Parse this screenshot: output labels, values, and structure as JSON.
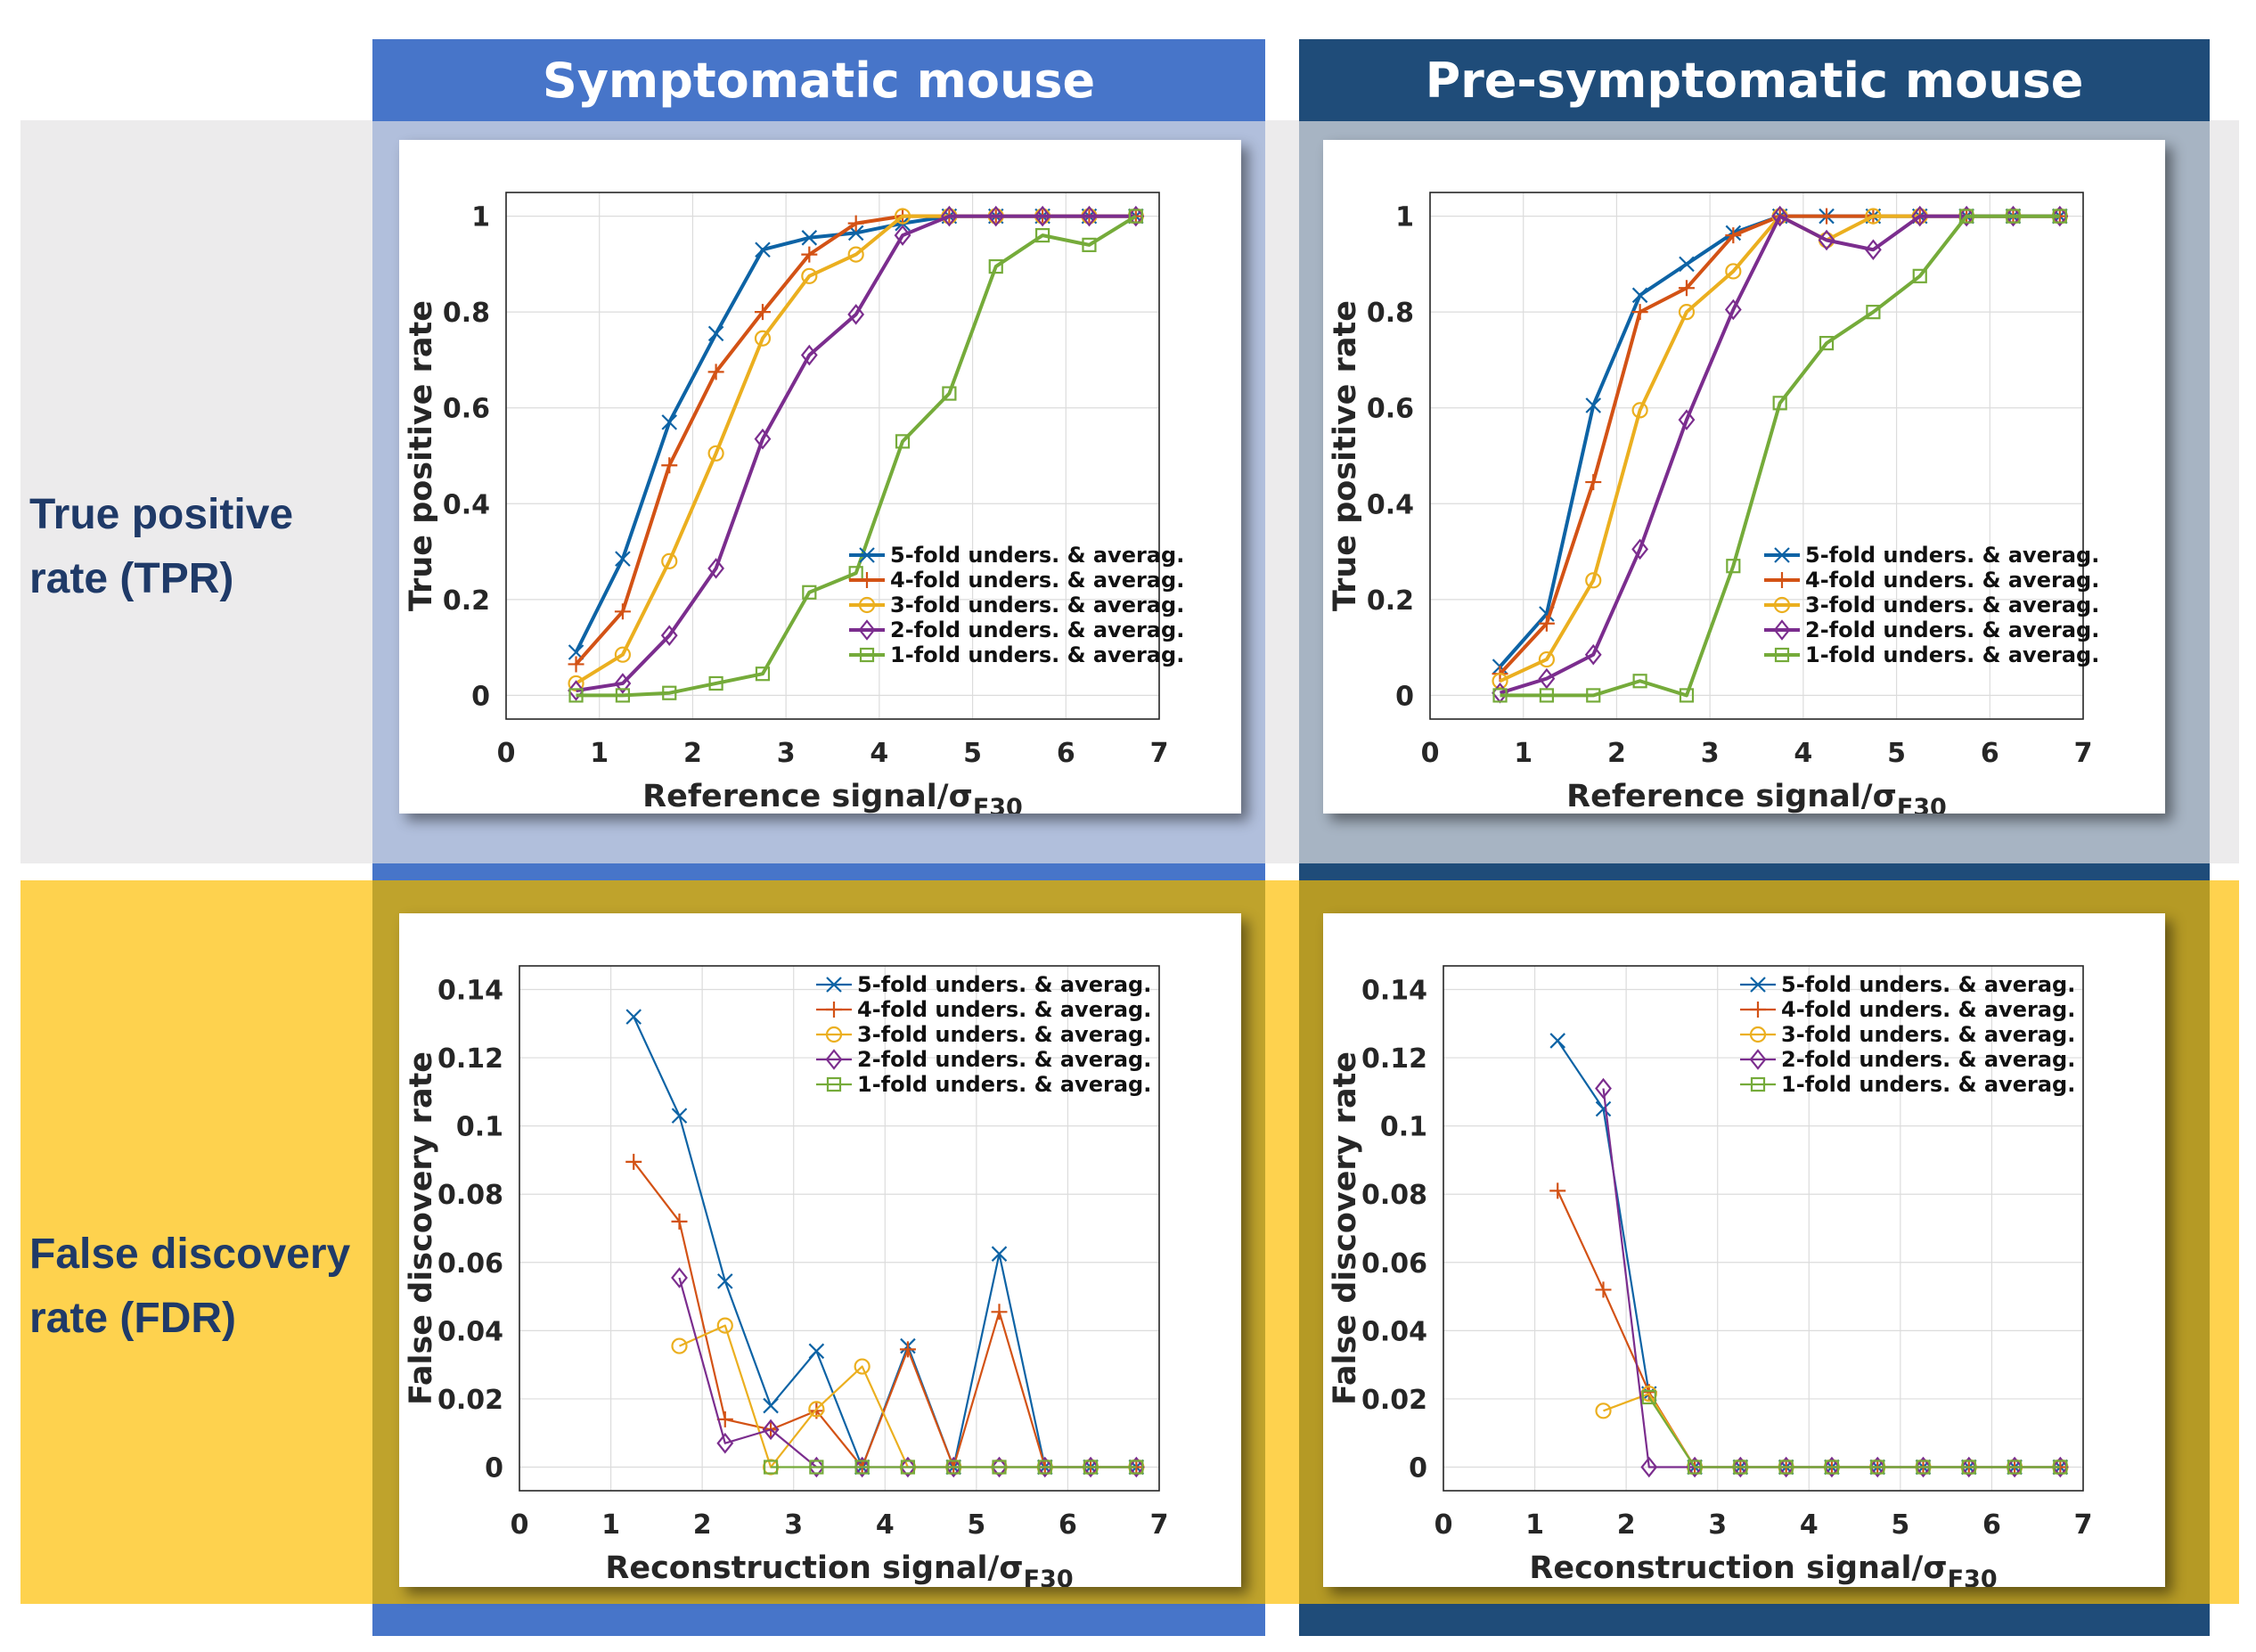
{
  "columns": [
    {
      "title": "Symptomatic mouse",
      "color": "#4775c9"
    },
    {
      "title": "Pre-symptomatic mouse",
      "color": "#1f4c79"
    }
  ],
  "rows": [
    {
      "line1": "True positive",
      "line2": "rate (TPR)"
    },
    {
      "line1": "False discovery",
      "line2": "rate (FDR)"
    }
  ],
  "series_names": [
    "5-fold unders. & averag.",
    "4-fold unders. & averag.",
    "3-fold unders. & averag.",
    "2-fold unders. & averag.",
    "1-fold unders. & averag."
  ],
  "series_colors": [
    "#0d63a5",
    "#d35215",
    "#ebaf1f",
    "#7b2d8e",
    "#75ab3a"
  ],
  "series_markers": [
    "x",
    "+",
    "o",
    "diamond",
    "square"
  ],
  "chart_data": [
    {
      "id": "tpr-symptomatic",
      "type": "line",
      "xlabel": "Reference signal/σ",
      "xlabel_sub": "F30",
      "ylabel": "True positive rate",
      "xlim": [
        0,
        7
      ],
      "ylim": [
        0,
        1
      ],
      "xticks": [
        "0",
        "1",
        "2",
        "3",
        "4",
        "5",
        "6",
        "7"
      ],
      "yticks": [
        "0",
        "0.2",
        "0.4",
        "0.6",
        "0.8",
        "1"
      ],
      "legend_position": "bottom-right",
      "series": [
        {
          "name": "5-fold unders. & averag.",
          "x": [
            0.75,
            1.25,
            1.75,
            2.25,
            2.75,
            3.25,
            3.75,
            4.25,
            4.75,
            5.25,
            5.75,
            6.25,
            6.75
          ],
          "y": [
            0.09,
            0.285,
            0.57,
            0.755,
            0.93,
            0.955,
            0.965,
            0.985,
            1,
            1,
            1,
            1,
            1
          ]
        },
        {
          "name": "4-fold unders. & averag.",
          "x": [
            0.75,
            1.25,
            1.75,
            2.25,
            2.75,
            3.25,
            3.75,
            4.25,
            4.75,
            5.25,
            5.75,
            6.25,
            6.75
          ],
          "y": [
            0.065,
            0.175,
            0.48,
            0.675,
            0.8,
            0.92,
            0.985,
            1,
            1,
            1,
            1,
            1,
            1
          ]
        },
        {
          "name": "3-fold unders. & averag.",
          "x": [
            0.75,
            1.25,
            1.75,
            2.25,
            2.75,
            3.25,
            3.75,
            4.25,
            4.75,
            5.25,
            5.75,
            6.25,
            6.75
          ],
          "y": [
            0.025,
            0.085,
            0.28,
            0.505,
            0.745,
            0.875,
            0.92,
            1,
            1,
            1,
            1,
            1,
            1
          ]
        },
        {
          "name": "2-fold unders. & averag.",
          "x": [
            0.75,
            1.25,
            1.75,
            2.25,
            2.75,
            3.25,
            3.75,
            4.25,
            4.75,
            5.25,
            5.75,
            6.25,
            6.75
          ],
          "y": [
            0.01,
            0.025,
            0.125,
            0.265,
            0.535,
            0.71,
            0.795,
            0.96,
            1,
            1,
            1,
            1,
            1
          ]
        },
        {
          "name": "1-fold unders. & averag.",
          "x": [
            0.75,
            1.25,
            1.75,
            2.25,
            2.75,
            3.25,
            3.75,
            4.25,
            4.75,
            5.25,
            5.75,
            6.25,
            6.75
          ],
          "y": [
            0,
            0,
            0.005,
            0.025,
            0.045,
            0.215,
            0.255,
            0.53,
            0.63,
            0.895,
            0.96,
            0.94,
            1
          ]
        }
      ]
    },
    {
      "id": "tpr-presymptomatic",
      "type": "line",
      "xlabel": "Reference signal/σ",
      "xlabel_sub": "F30",
      "ylabel": "True positive rate",
      "xlim": [
        0,
        7
      ],
      "ylim": [
        0,
        1
      ],
      "xticks": [
        "0",
        "1",
        "2",
        "3",
        "4",
        "5",
        "6",
        "7"
      ],
      "yticks": [
        "0",
        "0.2",
        "0.4",
        "0.6",
        "0.8",
        "1"
      ],
      "legend_position": "bottom-right",
      "series": [
        {
          "name": "5-fold unders. & averag.",
          "x": [
            0.75,
            1.25,
            1.75,
            2.25,
            2.75,
            3.25,
            3.75,
            4.25,
            4.75,
            5.25,
            5.75,
            6.25,
            6.75
          ],
          "y": [
            0.06,
            0.17,
            0.605,
            0.835,
            0.9,
            0.965,
            1,
            1,
            1,
            1,
            1,
            1,
            1
          ]
        },
        {
          "name": "4-fold unders. & averag.",
          "x": [
            0.75,
            1.25,
            1.75,
            2.25,
            2.75,
            3.25,
            3.75,
            4.25,
            4.75,
            5.25,
            5.75,
            6.25,
            6.75
          ],
          "y": [
            0.045,
            0.15,
            0.445,
            0.8,
            0.85,
            0.96,
            1,
            1,
            1,
            1,
            1,
            1,
            1
          ]
        },
        {
          "name": "3-fold unders. & averag.",
          "x": [
            0.75,
            1.25,
            1.75,
            2.25,
            2.75,
            3.25,
            3.75,
            4.25,
            4.75,
            5.25,
            5.75,
            6.25,
            6.75
          ],
          "y": [
            0.03,
            0.075,
            0.24,
            0.595,
            0.8,
            0.885,
            1,
            0.95,
            1,
            1,
            1,
            1,
            1
          ]
        },
        {
          "name": "2-fold unders. & averag.",
          "x": [
            0.75,
            1.25,
            1.75,
            2.25,
            2.75,
            3.25,
            3.75,
            4.25,
            4.75,
            5.25,
            5.75,
            6.25,
            6.75
          ],
          "y": [
            0.005,
            0.035,
            0.085,
            0.305,
            0.575,
            0.805,
            1,
            0.95,
            0.93,
            1,
            1,
            1,
            1
          ]
        },
        {
          "name": "1-fold unders. & averag.",
          "x": [
            0.75,
            1.25,
            1.75,
            2.25,
            2.75,
            3.25,
            3.75,
            4.25,
            4.75,
            5.25,
            5.75,
            6.25,
            6.75
          ],
          "y": [
            0,
            0,
            0,
            0.03,
            0,
            0.27,
            0.61,
            0.735,
            0.8,
            0.875,
            1,
            1,
            1
          ]
        }
      ]
    },
    {
      "id": "fdr-symptomatic",
      "type": "line",
      "xlabel": "Reconstruction signal/σ",
      "xlabel_sub": "F30",
      "ylabel": "False discovery rate",
      "xlim": [
        0,
        7
      ],
      "ylim": [
        0,
        0.14
      ],
      "xticks": [
        "0",
        "1",
        "2",
        "3",
        "4",
        "5",
        "6",
        "7"
      ],
      "yticks": [
        "0",
        "0.02",
        "0.04",
        "0.06",
        "0.08",
        "0.1",
        "0.12",
        "0.14"
      ],
      "legend_position": "top-right",
      "series": [
        {
          "name": "5-fold unders. & averag.",
          "x": [
            1.25,
            1.75,
            2.25,
            2.75,
            3.25,
            3.75,
            4.25,
            4.75,
            5.25,
            5.75,
            6.25,
            6.75
          ],
          "y": [
            0.132,
            0.103,
            0.0545,
            0.018,
            0.034,
            0,
            0.0355,
            0,
            0.0625,
            0,
            0,
            0
          ]
        },
        {
          "name": "4-fold unders. & averag.",
          "x": [
            1.25,
            1.75,
            2.25,
            2.75,
            3.25,
            3.75,
            4.25,
            4.75,
            5.25,
            5.75,
            6.25,
            6.75
          ],
          "y": [
            0.0895,
            0.072,
            0.014,
            0.011,
            0.0165,
            0,
            0.0345,
            0,
            0.0455,
            0,
            0,
            0
          ]
        },
        {
          "name": "3-fold unders. & averag.",
          "x": [
            1.75,
            2.25,
            2.75,
            3.25,
            3.75,
            4.25,
            4.75,
            5.25,
            5.75,
            6.25,
            6.75
          ],
          "y": [
            0.0355,
            0.0415,
            0,
            0.017,
            0.0295,
            0,
            0,
            0,
            0,
            0,
            0
          ]
        },
        {
          "name": "2-fold unders. & averag.",
          "x": [
            1.75,
            2.25,
            2.75,
            3.25,
            3.75,
            4.25,
            4.75,
            5.25,
            5.75,
            6.25,
            6.75
          ],
          "y": [
            0.0555,
            0.007,
            0.011,
            0,
            0,
            0,
            0,
            0,
            0,
            0,
            0
          ]
        },
        {
          "name": "1-fold unders. & averag.",
          "x": [
            2.75,
            3.25,
            3.75,
            4.25,
            4.75,
            5.25,
            5.75,
            6.25,
            6.75
          ],
          "y": [
            0,
            0,
            0,
            0,
            0,
            0,
            0,
            0,
            0
          ]
        }
      ]
    },
    {
      "id": "fdr-presymptomatic",
      "type": "line",
      "xlabel": "Reconstruction signal/σ",
      "xlabel_sub": "F30",
      "ylabel": "False discovery rate",
      "xlim": [
        0,
        7
      ],
      "ylim": [
        0,
        0.14
      ],
      "xticks": [
        "0",
        "1",
        "2",
        "3",
        "4",
        "5",
        "6",
        "7"
      ],
      "yticks": [
        "0",
        "0.02",
        "0.04",
        "0.06",
        "0.08",
        "0.1",
        "0.12",
        "0.14"
      ],
      "legend_position": "top-right",
      "series": [
        {
          "name": "5-fold unders. & averag.",
          "x": [
            1.25,
            1.75,
            2.25,
            2.75,
            3.25,
            3.75,
            4.25,
            4.75,
            5.25,
            5.75,
            6.25,
            6.75
          ],
          "y": [
            0.125,
            0.105,
            0.0215,
            0,
            0,
            0,
            0,
            0,
            0,
            0,
            0,
            0
          ]
        },
        {
          "name": "4-fold unders. & averag.",
          "x": [
            1.25,
            1.75,
            2.25,
            2.75,
            3.25,
            3.75,
            4.25,
            4.75,
            5.25,
            5.75,
            6.25,
            6.75
          ],
          "y": [
            0.081,
            0.052,
            0.022,
            0,
            0,
            0,
            0,
            0,
            0,
            0,
            0,
            0
          ]
        },
        {
          "name": "3-fold unders. & averag.",
          "x": [
            1.75,
            2.25,
            2.75,
            3.25,
            3.75,
            4.25,
            4.75,
            5.25,
            5.75,
            6.25,
            6.75
          ],
          "y": [
            0.0165,
            0.0215,
            0,
            0,
            0,
            0,
            0,
            0,
            0,
            0,
            0
          ]
        },
        {
          "name": "2-fold unders. & averag.",
          "x": [
            1.75,
            2.25,
            2.75,
            3.25,
            3.75,
            4.25,
            4.75,
            5.25,
            5.75,
            6.25,
            6.75
          ],
          "y": [
            0.111,
            0,
            0,
            0,
            0,
            0,
            0,
            0,
            0,
            0,
            0
          ]
        },
        {
          "name": "1-fold unders. & averag.",
          "x": [
            2.25,
            2.75,
            3.25,
            3.75,
            4.25,
            4.75,
            5.25,
            5.75,
            6.25,
            6.75
          ],
          "y": [
            0.0205,
            0,
            0,
            0,
            0,
            0,
            0,
            0,
            0,
            0
          ]
        }
      ]
    }
  ]
}
